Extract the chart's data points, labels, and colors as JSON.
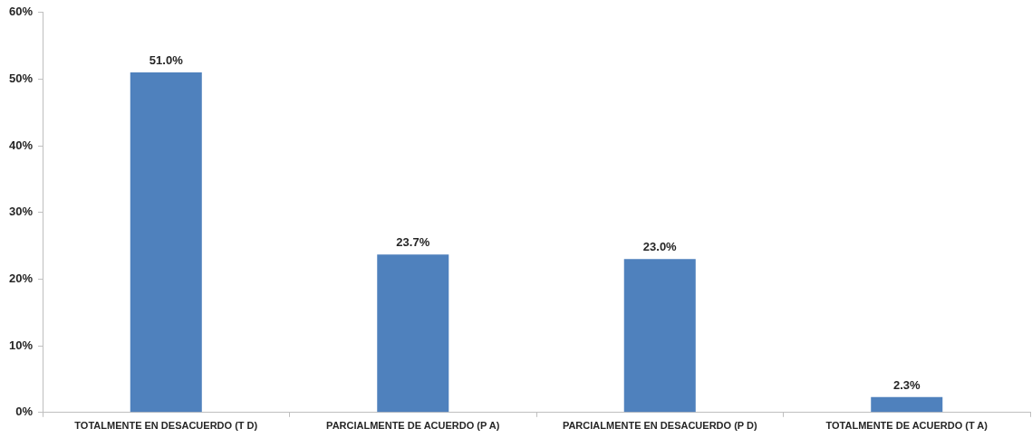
{
  "chart_data": {
    "type": "bar",
    "categories": [
      "TOTALMENTE EN DESACUERDO (T D)",
      "PARCIALMENTE DE ACUERDO (P A)",
      "PARCIALMENTE EN DESACUERDO (P D)",
      "TOTALMENTE DE ACUERDO (T A)"
    ],
    "values": [
      51.0,
      23.7,
      23.0,
      2.3
    ],
    "color": "#4f81bd",
    "value_labels": [
      "51.0%",
      "23.7%",
      "23.0%",
      "2.3%"
    ],
    "ylim": [
      0,
      60
    ],
    "yticks": [
      {
        "value": 0,
        "label": "0%"
      },
      {
        "value": 10,
        "label": "10%"
      },
      {
        "value": 20,
        "label": "20%"
      },
      {
        "value": 30,
        "label": "30%"
      },
      {
        "value": 40,
        "label": "40%"
      },
      {
        "value": 50,
        "label": "50%"
      },
      {
        "value": 60,
        "label": "60%"
      }
    ],
    "grid": false,
    "legend": false
  }
}
